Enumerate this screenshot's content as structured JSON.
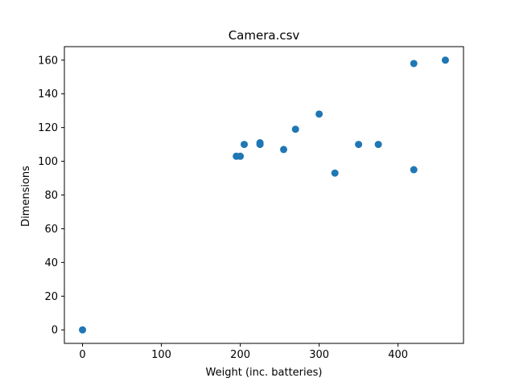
{
  "chart_data": {
    "type": "scatter",
    "title": "Camera.csv",
    "xlabel": "Weight (inc. batteries)",
    "ylabel": "Dimensions",
    "xlim": [
      -23,
      483
    ],
    "ylim": [
      -8,
      168
    ],
    "xticks": [
      0,
      100,
      200,
      300,
      400
    ],
    "yticks": [
      0,
      20,
      40,
      60,
      80,
      100,
      120,
      140,
      160
    ],
    "grid": false,
    "color": "#1f77b4",
    "points": [
      {
        "x": 0,
        "y": 0
      },
      {
        "x": 195,
        "y": 103
      },
      {
        "x": 200,
        "y": 103
      },
      {
        "x": 205,
        "y": 110
      },
      {
        "x": 225,
        "y": 111
      },
      {
        "x": 225,
        "y": 110
      },
      {
        "x": 255,
        "y": 107
      },
      {
        "x": 270,
        "y": 119
      },
      {
        "x": 300,
        "y": 128
      },
      {
        "x": 320,
        "y": 93
      },
      {
        "x": 350,
        "y": 110
      },
      {
        "x": 375,
        "y": 110
      },
      {
        "x": 420,
        "y": 158
      },
      {
        "x": 420,
        "y": 95
      },
      {
        "x": 460,
        "y": 160
      }
    ]
  }
}
